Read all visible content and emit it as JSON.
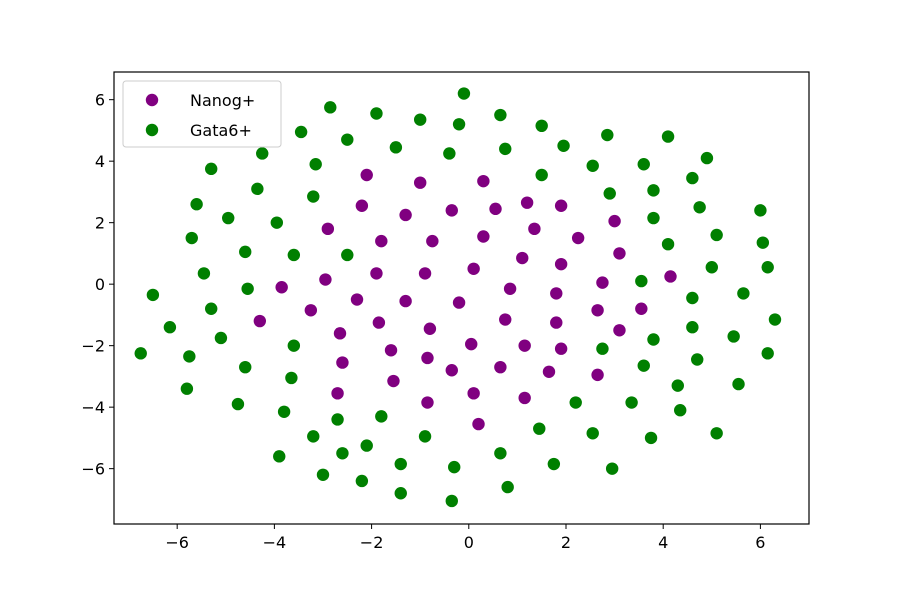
{
  "chart_data": {
    "type": "scatter",
    "title": "",
    "xlabel": "",
    "ylabel": "",
    "xlim": [
      -7.3,
      7.0
    ],
    "ylim": [
      -7.8,
      6.9
    ],
    "xticks": [
      -6,
      -4,
      -2,
      0,
      2,
      4,
      6
    ],
    "yticks": [
      -6,
      -4,
      -2,
      0,
      2,
      4,
      6
    ],
    "grid": false,
    "legend_position": "upper-left",
    "series": [
      {
        "name": "Nanog+",
        "color": "#800080",
        "points": [
          [
            -2.1,
            3.55
          ],
          [
            -1.0,
            3.3
          ],
          [
            0.3,
            3.35
          ],
          [
            -2.2,
            2.55
          ],
          [
            -1.3,
            2.25
          ],
          [
            -0.35,
            2.4
          ],
          [
            0.55,
            2.45
          ],
          [
            1.2,
            2.65
          ],
          [
            1.9,
            2.55
          ],
          [
            3.0,
            2.05
          ],
          [
            -2.9,
            1.8
          ],
          [
            -1.8,
            1.4
          ],
          [
            -0.75,
            1.4
          ],
          [
            0.3,
            1.55
          ],
          [
            1.35,
            1.8
          ],
          [
            2.25,
            1.5
          ],
          [
            3.1,
            1.0
          ],
          [
            -2.95,
            0.15
          ],
          [
            -1.9,
            0.35
          ],
          [
            -0.9,
            0.35
          ],
          [
            0.1,
            0.5
          ],
          [
            1.1,
            0.85
          ],
          [
            1.9,
            0.65
          ],
          [
            2.75,
            0.05
          ],
          [
            4.15,
            0.25
          ],
          [
            -3.85,
            -0.1
          ],
          [
            -2.3,
            -0.5
          ],
          [
            -1.3,
            -0.55
          ],
          [
            -0.2,
            -0.6
          ],
          [
            0.85,
            -0.15
          ],
          [
            1.8,
            -0.3
          ],
          [
            3.55,
            -0.8
          ],
          [
            -4.3,
            -1.2
          ],
          [
            -3.25,
            -0.85
          ],
          [
            -2.65,
            -1.6
          ],
          [
            -1.85,
            -1.25
          ],
          [
            -0.8,
            -1.45
          ],
          [
            0.75,
            -1.15
          ],
          [
            1.8,
            -1.25
          ],
          [
            2.65,
            -0.85
          ],
          [
            3.1,
            -1.5
          ],
          [
            -2.6,
            -2.55
          ],
          [
            -1.6,
            -2.15
          ],
          [
            -0.85,
            -2.4
          ],
          [
            0.05,
            -1.95
          ],
          [
            1.15,
            -2.0
          ],
          [
            1.9,
            -2.1
          ],
          [
            -2.7,
            -3.55
          ],
          [
            -1.55,
            -3.15
          ],
          [
            -0.35,
            -2.8
          ],
          [
            0.65,
            -2.7
          ],
          [
            1.65,
            -2.85
          ],
          [
            2.65,
            -2.95
          ],
          [
            -0.85,
            -3.85
          ],
          [
            0.1,
            -3.55
          ],
          [
            1.15,
            -3.7
          ],
          [
            0.2,
            -4.55
          ]
        ]
      },
      {
        "name": "Gata6+",
        "color": "#008000",
        "points": [
          [
            -0.1,
            6.2
          ],
          [
            -2.85,
            5.75
          ],
          [
            -1.9,
            5.55
          ],
          [
            -1.0,
            5.35
          ],
          [
            -0.2,
            5.2
          ],
          [
            0.65,
            5.5
          ],
          [
            1.5,
            5.15
          ],
          [
            -3.45,
            4.95
          ],
          [
            -2.5,
            4.7
          ],
          [
            -1.5,
            4.45
          ],
          [
            -0.4,
            4.25
          ],
          [
            0.75,
            4.4
          ],
          [
            1.95,
            4.5
          ],
          [
            2.85,
            4.85
          ],
          [
            4.1,
            4.8
          ],
          [
            4.9,
            4.1
          ],
          [
            -5.3,
            3.75
          ],
          [
            -4.25,
            4.25
          ],
          [
            -3.15,
            3.9
          ],
          [
            1.5,
            3.55
          ],
          [
            2.55,
            3.85
          ],
          [
            3.6,
            3.9
          ],
          [
            4.6,
            3.45
          ],
          [
            -5.6,
            2.6
          ],
          [
            -4.35,
            3.1
          ],
          [
            -3.2,
            2.85
          ],
          [
            2.9,
            2.95
          ],
          [
            3.8,
            3.05
          ],
          [
            4.75,
            2.5
          ],
          [
            6.0,
            2.4
          ],
          [
            -5.7,
            1.5
          ],
          [
            -4.95,
            2.15
          ],
          [
            -3.95,
            2.0
          ],
          [
            3.8,
            2.15
          ],
          [
            4.1,
            1.3
          ],
          [
            5.1,
            1.6
          ],
          [
            6.05,
            1.35
          ],
          [
            -5.45,
            0.35
          ],
          [
            -4.6,
            1.05
          ],
          [
            -3.6,
            0.95
          ],
          [
            -2.5,
            0.95
          ],
          [
            3.55,
            0.1
          ],
          [
            5.0,
            0.55
          ],
          [
            6.15,
            0.55
          ],
          [
            -6.5,
            -0.35
          ],
          [
            -5.3,
            -0.8
          ],
          [
            -4.55,
            -0.15
          ],
          [
            4.6,
            -0.45
          ],
          [
            5.65,
            -0.3
          ],
          [
            -6.15,
            -1.4
          ],
          [
            -5.1,
            -1.75
          ],
          [
            -3.6,
            -2.0
          ],
          [
            3.8,
            -1.8
          ],
          [
            4.6,
            -1.4
          ],
          [
            5.45,
            -1.7
          ],
          [
            6.3,
            -1.15
          ],
          [
            -6.75,
            -2.25
          ],
          [
            -5.75,
            -2.35
          ],
          [
            -4.6,
            -2.7
          ],
          [
            2.75,
            -2.1
          ],
          [
            3.6,
            -2.65
          ],
          [
            4.7,
            -2.45
          ],
          [
            6.15,
            -2.25
          ],
          [
            -5.8,
            -3.4
          ],
          [
            -4.75,
            -3.9
          ],
          [
            -3.65,
            -3.05
          ],
          [
            -2.7,
            -4.4
          ],
          [
            -1.8,
            -4.3
          ],
          [
            2.2,
            -3.85
          ],
          [
            3.35,
            -3.85
          ],
          [
            4.3,
            -3.3
          ],
          [
            5.55,
            -3.25
          ],
          [
            -3.8,
            -4.15
          ],
          [
            -3.2,
            -4.95
          ],
          [
            -2.1,
            -5.25
          ],
          [
            -0.9,
            -4.95
          ],
          [
            1.45,
            -4.7
          ],
          [
            2.55,
            -4.85
          ],
          [
            3.75,
            -5.0
          ],
          [
            4.35,
            -4.1
          ],
          [
            5.1,
            -4.85
          ],
          [
            -3.9,
            -5.6
          ],
          [
            -2.6,
            -5.5
          ],
          [
            -1.4,
            -5.85
          ],
          [
            -0.3,
            -5.95
          ],
          [
            0.65,
            -5.5
          ],
          [
            1.75,
            -5.85
          ],
          [
            2.95,
            -6.0
          ],
          [
            -3.0,
            -6.2
          ],
          [
            -2.2,
            -6.4
          ],
          [
            -1.4,
            -6.8
          ],
          [
            -0.35,
            -7.05
          ],
          [
            0.8,
            -6.6
          ]
        ]
      }
    ]
  }
}
